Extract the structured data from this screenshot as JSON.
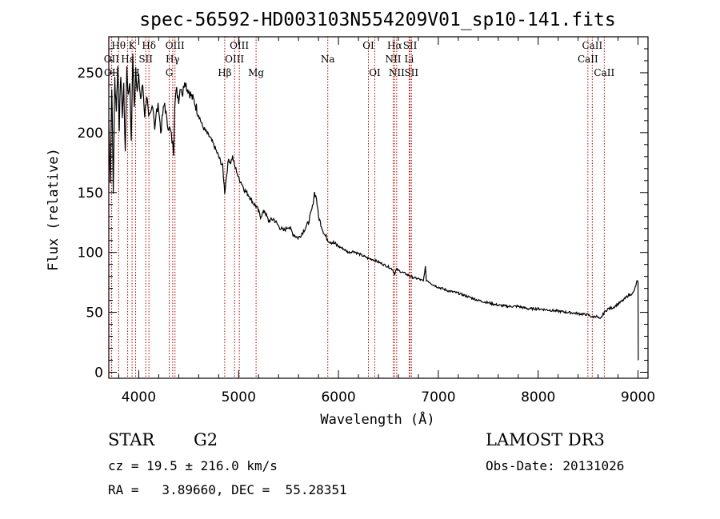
{
  "chart_data": {
    "type": "line",
    "title": "spec-56592-HD003103N554209V01_sp10-141.fits",
    "xlabel": "Wavelength (Å)",
    "ylabel": "Flux (relative)",
    "xlim": [
      3700,
      9100
    ],
    "ylim": [
      -5,
      280
    ],
    "xticks": [
      4000,
      5000,
      6000,
      7000,
      8000,
      9000
    ],
    "yticks": [
      0,
      50,
      100,
      150,
      200,
      250
    ],
    "series": [
      {
        "name": "spectrum",
        "x": [
          3700,
          3715,
          3730,
          3745,
          3760,
          3775,
          3790,
          3805,
          3820,
          3835,
          3850,
          3865,
          3880,
          3895,
          3910,
          3925,
          3940,
          3955,
          3970,
          3985,
          4000,
          4020,
          4040,
          4060,
          4080,
          4100,
          4120,
          4140,
          4160,
          4180,
          4200,
          4220,
          4240,
          4260,
          4280,
          4300,
          4320,
          4340,
          4350,
          4360,
          4380,
          4400,
          4420,
          4440,
          4460,
          4480,
          4500,
          4530,
          4560,
          4600,
          4640,
          4680,
          4720,
          4760,
          4800,
          4840,
          4861,
          4880,
          4900,
          4920,
          4940,
          4960,
          4980,
          5000,
          5030,
          5060,
          5100,
          5140,
          5180,
          5220,
          5260,
          5300,
          5350,
          5400,
          5450,
          5500,
          5550,
          5600,
          5650,
          5700,
          5740,
          5760,
          5780,
          5800,
          5830,
          5860,
          5900,
          5950,
          6000,
          6050,
          6100,
          6150,
          6200,
          6250,
          6300,
          6350,
          6400,
          6450,
          6500,
          6540,
          6563,
          6580,
          6600,
          6650,
          6700,
          6750,
          6800,
          6850,
          6870,
          6880,
          6900,
          6950,
          7000,
          7100,
          7200,
          7300,
          7400,
          7500,
          7600,
          7700,
          7800,
          7900,
          8000,
          8100,
          8200,
          8300,
          8400,
          8500,
          8542,
          8580,
          8620,
          8662,
          8700,
          8750,
          8800,
          8850,
          8900,
          8950,
          8970,
          8980,
          8990,
          9000
        ],
        "y": [
          210,
          160,
          240,
          150,
          245,
          220,
          255,
          205,
          250,
          215,
          240,
          180,
          255,
          230,
          245,
          190,
          265,
          220,
          255,
          235,
          245,
          228,
          240,
          215,
          232,
          210,
          215,
          225,
          205,
          218,
          222,
          200,
          215,
          225,
          210,
          205,
          200,
          190,
          185,
          225,
          235,
          228,
          240,
          232,
          245,
          238,
          235,
          230,
          225,
          215,
          205,
          200,
          195,
          188,
          180,
          172,
          150,
          165,
          178,
          175,
          180,
          172,
          168,
          162,
          158,
          152,
          148,
          142,
          138,
          130,
          135,
          126,
          128,
          122,
          118,
          122,
          115,
          112,
          118,
          125,
          138,
          150,
          145,
          130,
          122,
          115,
          110,
          108,
          105,
          103,
          100,
          101,
          99,
          97,
          95,
          94,
          92,
          90,
          88,
          86,
          82,
          86,
          85,
          83,
          81,
          79,
          78,
          76,
          88,
          77,
          76,
          73,
          71,
          68,
          66,
          63,
          60,
          58,
          56,
          55,
          55,
          53,
          53,
          52,
          51,
          50,
          49,
          48,
          46,
          47,
          44,
          50,
          53,
          54,
          57,
          60,
          64,
          66,
          70,
          73,
          76,
          75
        ]
      }
    ],
    "spectral_lines": [
      {
        "label": "Hθ",
        "wave": 3798,
        "row": 1
      },
      {
        "label": "K",
        "wave": 3933,
        "row": 1
      },
      {
        "label": "Hδ",
        "wave": 4102,
        "row": 1
      },
      {
        "label": "OIII",
        "wave": 4363,
        "row": 1
      },
      {
        "label": "OIII",
        "wave": 5007,
        "row": 1
      },
      {
        "label": "OI",
        "wave": 6300,
        "row": 1
      },
      {
        "label": "Hα",
        "wave": 6563,
        "row": 1
      },
      {
        "label": "SII",
        "wave": 6717,
        "row": 1
      },
      {
        "label": "CaII",
        "wave": 8542,
        "row": 1
      },
      {
        "label": "OII",
        "wave": 3727,
        "row": 2
      },
      {
        "label": "Hε",
        "wave": 3889,
        "row": 2
      },
      {
        "label": "SII",
        "wave": 4070,
        "row": 2
      },
      {
        "label": "Hγ",
        "wave": 4340,
        "row": 2
      },
      {
        "label": "OIII",
        "wave": 4959,
        "row": 2
      },
      {
        "label": "Na",
        "wave": 5893,
        "row": 2
      },
      {
        "label": "NII",
        "wave": 6548,
        "row": 2
      },
      {
        "label": "Li",
        "wave": 6708,
        "row": 2
      },
      {
        "label": "CaII",
        "wave": 8498,
        "row": 2
      },
      {
        "label": "OII",
        "wave": 3729,
        "row": 3
      },
      {
        "label": "H",
        "wave": 3968,
        "row": 3
      },
      {
        "label": "G",
        "wave": 4305,
        "row": 3
      },
      {
        "label": "Hβ",
        "wave": 4861,
        "row": 3
      },
      {
        "label": "Mg",
        "wave": 5175,
        "row": 3
      },
      {
        "label": "OI",
        "wave": 6364,
        "row": 3
      },
      {
        "label": "NII",
        "wave": 6583,
        "row": 3
      },
      {
        "label": "SII",
        "wave": 6731,
        "row": 3
      },
      {
        "label": "CaII",
        "wave": 8662,
        "row": 3
      }
    ]
  },
  "info": {
    "object_class": "STAR",
    "subclass": "G2",
    "survey": "LAMOST DR3",
    "cz": "cz = 19.5 ± 216.0 km/s",
    "obs_date": "Obs-Date: 20131026",
    "coords": "RA =   3.89660, DEC =  55.28351"
  },
  "colors": {
    "spectrum": "#000000",
    "lines": "#b00000",
    "axes": "#000000"
  }
}
